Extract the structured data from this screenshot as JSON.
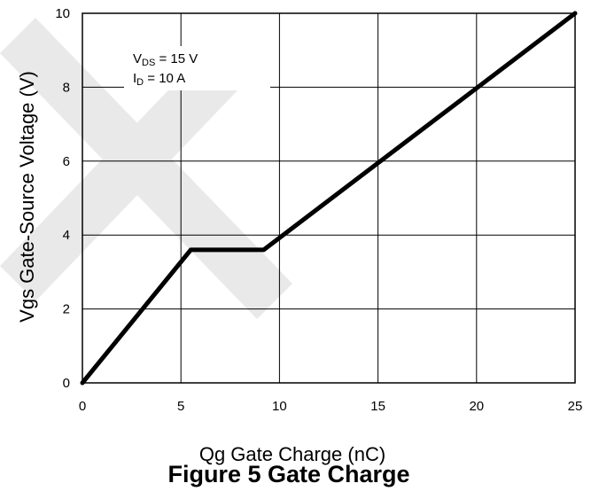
{
  "chart_data": {
    "type": "line",
    "title": "Figure 5 Gate Charge",
    "xlabel": "Qg Gate Charge (nC)",
    "ylabel": "Vgs Gate-Source Voltage (V)",
    "xlim": [
      0,
      25
    ],
    "ylim": [
      0,
      10
    ],
    "xticks": [
      "0",
      "5",
      "10",
      "15",
      "20",
      "25"
    ],
    "yticks": [
      "0",
      "2",
      "4",
      "6",
      "8",
      "10"
    ],
    "grid": true,
    "series": [
      {
        "x": [
          0,
          5.5,
          9.2,
          25
        ],
        "y": [
          0,
          3.6,
          3.6,
          10
        ]
      }
    ],
    "annotations": [
      {
        "main": "V",
        "sub": "DS",
        "rest": " = 15 V"
      },
      {
        "main": "I",
        "sub": "D",
        "rest": " = 10 A"
      }
    ]
  }
}
